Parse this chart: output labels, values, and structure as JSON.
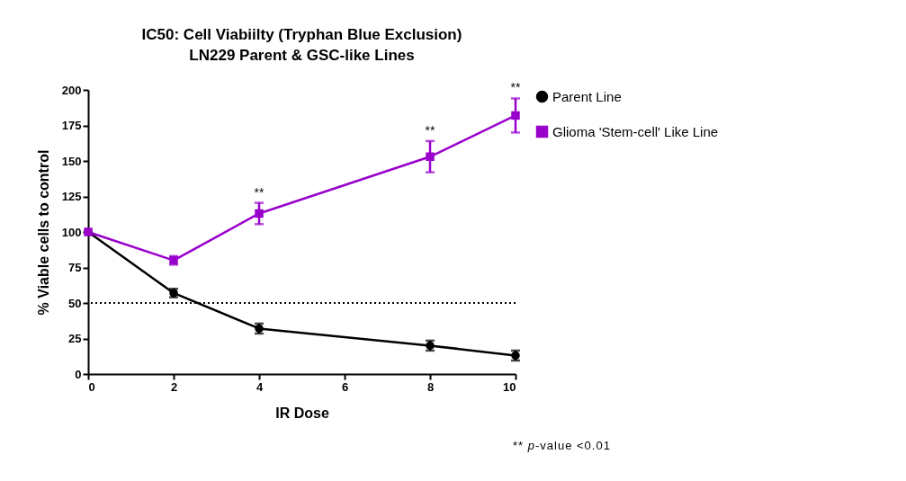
{
  "chart_data": {
    "type": "line",
    "title": "IC50: Cell Viabiilty (Tryphan Blue Exclusion)",
    "subtitle": "LN229 Parent & GSC-like Lines",
    "xlabel": "IR Dose",
    "ylabel": "% Viable cells to control",
    "x": [
      0,
      2,
      4,
      8,
      10
    ],
    "series": [
      {
        "name": "Parent Line",
        "color": "#000000",
        "marker": "circle",
        "values": [
          100,
          57,
          32,
          20,
          13
        ],
        "errors": [
          null,
          3,
          3.5,
          3.5,
          3.5
        ]
      },
      {
        "name": "Glioma 'Stem-cell' Like Line",
        "color": "#9900cc",
        "marker": "square",
        "values": [
          100,
          80,
          113,
          153,
          182
        ],
        "errors": [
          null,
          3,
          7.5,
          11,
          12
        ]
      }
    ],
    "xlim": [
      0,
      10
    ],
    "xticks": [
      0,
      2,
      4,
      6,
      8,
      10
    ],
    "ylim": [
      0,
      200
    ],
    "yticks": [
      0,
      25,
      50,
      75,
      100,
      125,
      150,
      175,
      200
    ],
    "ref_lines": [
      {
        "axis": "y",
        "value": 50,
        "line_style": "dotted",
        "color": "#000000"
      }
    ],
    "annotations": [
      {
        "text": "**",
        "x": 4,
        "y": 120.5
      },
      {
        "text": "**",
        "x": 8,
        "y": 164
      },
      {
        "text": "**",
        "x": 10,
        "y": 194
      },
      "** p-value <0.01"
    ],
    "grid": false,
    "legend": "right",
    "line_style": "solid"
  }
}
